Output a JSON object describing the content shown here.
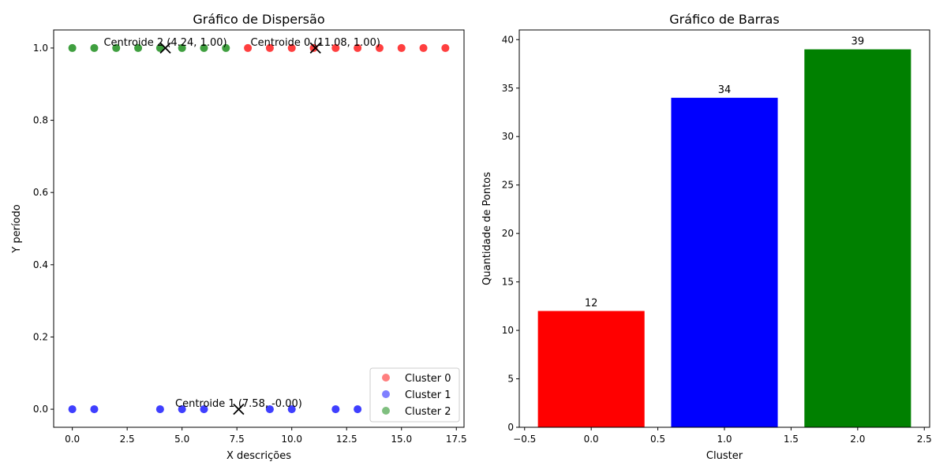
{
  "chart_data": [
    {
      "type": "scatter",
      "title": "Gráfico de Dispersão",
      "xlabel": "X descrições",
      "ylabel": "Y período",
      "xlim": [
        -0.85,
        17.85
      ],
      "ylim": [
        -0.05,
        1.05
      ],
      "xticks": [
        0,
        2.5,
        5,
        7.5,
        10,
        12.5,
        15,
        17.5
      ],
      "xtick_labels": [
        "0.0",
        "2.5",
        "5.0",
        "7.5",
        "10.0",
        "12.5",
        "15.0",
        "17.5"
      ],
      "yticks": [
        0,
        0.2,
        0.4,
        0.6,
        0.8,
        1.0
      ],
      "ytick_labels": [
        "0.0",
        "0.2",
        "0.4",
        "0.6",
        "0.8",
        "1.0"
      ],
      "grid": false,
      "legend_position": "lower-right",
      "series": [
        {
          "name": "Cluster 0",
          "color": "#ff0000",
          "points": [
            [
              8,
              1
            ],
            [
              9,
              1
            ],
            [
              10,
              1
            ],
            [
              11,
              1
            ],
            [
              12,
              1
            ],
            [
              13,
              1
            ],
            [
              14,
              1
            ],
            [
              15,
              1
            ],
            [
              16,
              1
            ],
            [
              17,
              1
            ]
          ]
        },
        {
          "name": "Cluster 1",
          "color": "#0000ff",
          "points": [
            [
              0,
              0
            ],
            [
              1,
              0
            ],
            [
              4,
              0
            ],
            [
              5,
              0
            ],
            [
              6,
              0
            ],
            [
              9,
              0
            ],
            [
              10,
              0
            ],
            [
              12,
              0
            ],
            [
              13,
              0
            ]
          ]
        },
        {
          "name": "Cluster 2",
          "color": "#008000",
          "points": [
            [
              0,
              1
            ],
            [
              1,
              1
            ],
            [
              2,
              1
            ],
            [
              3,
              1
            ],
            [
              4,
              1
            ],
            [
              5,
              1
            ],
            [
              6,
              1
            ],
            [
              7,
              1
            ]
          ]
        }
      ],
      "centroids": [
        {
          "x": 11.08,
          "y": 1.0,
          "label": "Centroide 0 (11.08, 1.00)"
        },
        {
          "x": 7.58,
          "y": 0.0,
          "label": "Centroide 1 (7.58, -0.00)"
        },
        {
          "x": 4.24,
          "y": 1.0,
          "label": "Centroide 2 (4.24, 1.00)"
        }
      ]
    },
    {
      "type": "bar",
      "title": "Gráfico de Barras",
      "xlabel": "Cluster",
      "ylabel": "Quantidade de Pontos",
      "xlim": [
        -0.54,
        2.54
      ],
      "ylim": [
        0,
        41
      ],
      "xticks": [
        -0.5,
        0,
        0.5,
        1,
        1.5,
        2,
        2.5
      ],
      "xtick_labels": [
        "−0.5",
        "0.0",
        "0.5",
        "1.0",
        "1.5",
        "2.0",
        "2.5"
      ],
      "yticks": [
        0,
        5,
        10,
        15,
        20,
        25,
        30,
        35,
        40
      ],
      "ytick_labels": [
        "0",
        "5",
        "10",
        "15",
        "20",
        "25",
        "30",
        "35",
        "40"
      ],
      "grid": false,
      "bar_width": 0.8,
      "bars": [
        {
          "x": 0,
          "value": 12,
          "label": "12",
          "color": "#ff0000"
        },
        {
          "x": 1,
          "value": 34,
          "label": "34",
          "color": "#0000ff"
        },
        {
          "x": 2,
          "value": 39,
          "label": "39",
          "color": "#008000"
        }
      ]
    }
  ]
}
